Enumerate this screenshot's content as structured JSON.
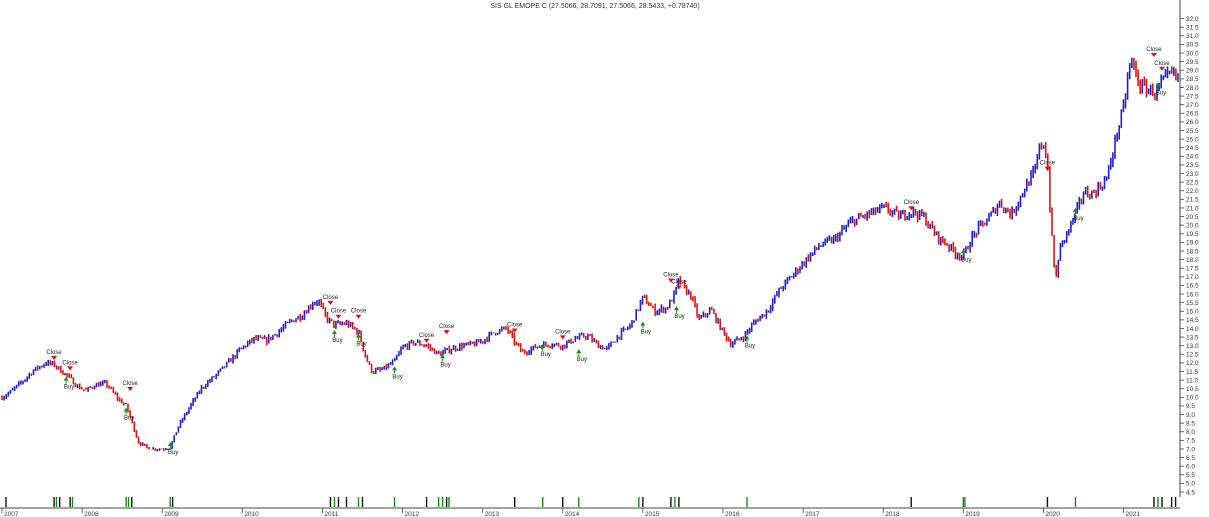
{
  "window": {
    "title": "SIS GL EMOPE C (27.5066, 28.7091, 27.5066, 28.5433, +0.78740)"
  },
  "colors": {
    "up_bar": "#1f1fd0",
    "down_bar": "#e01010",
    "close_marker": "#e01010",
    "buy_marker": "#1a8a1a",
    "axis": "#444444",
    "volume_bar": "#111111",
    "volume_bar_buy": "#1a8a1a"
  },
  "chart_data": {
    "type": "line",
    "title": "SIS GL EMOPE C (27.5066, 28.7091, 27.5066, 28.5433, +0.78740)",
    "xlabel": "",
    "ylabel": "",
    "x_range": [
      2007.0,
      2021.68
    ],
    "ylim": [
      4.5,
      32.5
    ],
    "y_ticks": [
      4.5,
      5.0,
      5.5,
      6.0,
      6.5,
      7.0,
      7.5,
      8.0,
      8.5,
      9.0,
      9.5,
      10.0,
      10.5,
      11.0,
      11.5,
      12.0,
      12.5,
      13.0,
      13.5,
      14.0,
      14.5,
      15.0,
      15.5,
      16.0,
      16.5,
      17.0,
      17.5,
      18.0,
      18.5,
      19.0,
      19.5,
      20.0,
      20.5,
      21.0,
      21.5,
      22.0,
      22.5,
      23.0,
      23.5,
      24.0,
      24.5,
      25.0,
      25.5,
      26.0,
      26.5,
      27.0,
      27.5,
      28.0,
      28.5,
      29.0,
      29.5,
      30.0,
      30.5,
      31.0,
      31.5,
      32.0
    ],
    "y_tick_labels": [
      "4.5",
      "5.0",
      "5.5",
      "6.0",
      "6.5",
      "7.0",
      "7.5",
      "8.0",
      "8.5",
      "9.0",
      "9.5",
      "10.0",
      "10.5",
      "11.0",
      "11.5",
      "12.0",
      "12.5",
      "13.0",
      "13.5",
      "14.0",
      "14.5",
      "15.0",
      "15.5",
      "16.0",
      "16.5",
      "17.0",
      "17.5",
      "18.0",
      "18.5",
      "19.0",
      "19.5",
      "20.0",
      "20.5",
      "21.0",
      "21.5",
      "22.0",
      "22.5",
      "23.0",
      "23.5",
      "24.0",
      "24.5",
      "25.0",
      "25.5",
      "26.0",
      "26.5",
      "27.0",
      "27.5",
      "28.0",
      "28.5",
      "29.0",
      "29.5",
      "30.0",
      "30.5",
      "31.0",
      "31.5",
      "32.0"
    ],
    "x_ticks": [
      2007,
      2008,
      2009,
      2010,
      2011,
      2012,
      2013,
      2014,
      2015,
      2016,
      2017,
      2018,
      2019,
      2020,
      2021
    ],
    "x_tick_labels": [
      "2007",
      "2008",
      "2009",
      "2010",
      "2011",
      "2012",
      "2013",
      "2014",
      "2015",
      "2016",
      "2017",
      "2018",
      "2019",
      "2020",
      "2021"
    ],
    "series": [
      {
        "x": [
          2007.0,
          2007.1,
          2007.25,
          2007.4,
          2007.55,
          2007.65,
          2007.75,
          2007.85,
          2007.95,
          2008.05,
          2008.15,
          2008.3,
          2008.45,
          2008.55,
          2008.62,
          2008.7,
          2008.8,
          2008.9,
          2009.0,
          2009.1,
          2009.2,
          2009.35,
          2009.5,
          2009.65,
          2009.8,
          2009.9,
          2010.0,
          2010.15,
          2010.3,
          2010.45,
          2010.6,
          2010.75,
          2010.88,
          2010.95,
          2011.05,
          2011.15,
          2011.3,
          2011.45,
          2011.55,
          2011.62,
          2011.75,
          2011.9,
          2012.0,
          2012.15,
          2012.3,
          2012.45,
          2012.6,
          2012.75,
          2012.9,
          2013.0,
          2013.15,
          2013.3,
          2013.4,
          2013.5,
          2013.6,
          2013.7,
          2013.85,
          2014.0,
          2014.15,
          2014.3,
          2014.45,
          2014.55,
          2014.7,
          2014.85,
          2015.0,
          2015.15,
          2015.3,
          2015.4,
          2015.45,
          2015.5,
          2015.6,
          2015.7,
          2015.85,
          2016.0,
          2016.1,
          2016.25,
          2016.4,
          2016.55,
          2016.7,
          2016.85,
          2017.0,
          2017.2,
          2017.4,
          2017.6,
          2017.8,
          2018.0,
          2018.1,
          2018.2,
          2018.35,
          2018.5,
          2018.6,
          2018.7,
          2018.8,
          2018.9,
          2019.0,
          2019.1,
          2019.2,
          2019.3,
          2019.45,
          2019.6,
          2019.75,
          2019.9,
          2019.95,
          2020.0,
          2020.05,
          2020.1,
          2020.15,
          2020.2,
          2020.3,
          2020.4,
          2020.5,
          2020.6,
          2020.7,
          2020.8,
          2020.9,
          2021.0,
          2021.05,
          2021.1,
          2021.2,
          2021.3,
          2021.4,
          2021.5,
          2021.6,
          2021.68
        ],
        "values": [
          10.0,
          10.3,
          10.9,
          11.6,
          12.0,
          11.9,
          11.5,
          11.1,
          10.6,
          10.4,
          10.7,
          10.8,
          9.9,
          9.5,
          8.6,
          7.4,
          7.1,
          7.0,
          7.0,
          7.1,
          8.3,
          9.5,
          10.6,
          11.2,
          11.9,
          12.4,
          12.9,
          13.4,
          13.3,
          13.8,
          14.4,
          14.8,
          15.5,
          15.6,
          14.6,
          14.2,
          14.3,
          13.8,
          12.2,
          11.5,
          11.6,
          12.1,
          12.9,
          13.2,
          13.0,
          12.5,
          12.8,
          13.0,
          13.1,
          13.3,
          13.8,
          14.0,
          13.2,
          12.6,
          12.8,
          13.0,
          13.1,
          13.0,
          13.4,
          13.6,
          13.0,
          12.8,
          13.6,
          14.2,
          15.8,
          15.0,
          15.2,
          16.0,
          16.9,
          16.4,
          15.9,
          14.5,
          15.1,
          13.8,
          13.1,
          13.5,
          14.4,
          15.0,
          16.2,
          17.0,
          17.8,
          18.8,
          19.2,
          20.2,
          20.6,
          21.0,
          20.8,
          20.5,
          20.8,
          20.5,
          19.8,
          19.2,
          18.9,
          18.4,
          18.2,
          19.2,
          19.9,
          20.3,
          21.3,
          20.6,
          22.0,
          23.2,
          24.5,
          24.8,
          23.6,
          19.6,
          16.6,
          18.6,
          19.6,
          20.6,
          21.9,
          21.8,
          22.2,
          22.8,
          25.0,
          26.8,
          28.5,
          29.6,
          28.1,
          27.9,
          27.7,
          28.4,
          28.8,
          28.54
        ]
      }
    ],
    "annotations": [
      {
        "text": "Close",
        "x": 2007.65,
        "y": 12.4,
        "kind": "close"
      },
      {
        "text": "Close",
        "x": 2007.85,
        "y": 11.8,
        "kind": "close"
      },
      {
        "text": "Buy",
        "x": 2007.8,
        "y": 11.2,
        "kind": "buy"
      },
      {
        "text": "Close",
        "x": 2008.6,
        "y": 10.6,
        "kind": "close"
      },
      {
        "text": "Buy",
        "x": 2008.55,
        "y": 9.4,
        "kind": "buy"
      },
      {
        "text": "Buy",
        "x": 2009.1,
        "y": 7.4,
        "kind": "buy"
      },
      {
        "text": "Close",
        "x": 2011.1,
        "y": 15.6,
        "kind": "close"
      },
      {
        "text": "Close",
        "x": 2011.2,
        "y": 14.8,
        "kind": "close"
      },
      {
        "text": "Buy",
        "x": 2011.15,
        "y": 13.9,
        "kind": "buy"
      },
      {
        "text": "Close",
        "x": 2011.45,
        "y": 14.8,
        "kind": "close"
      },
      {
        "text": "Buy",
        "x": 2011.45,
        "y": 13.7,
        "kind": "buy"
      },
      {
        "text": "Buy",
        "x": 2011.9,
        "y": 11.8,
        "kind": "buy"
      },
      {
        "text": "Close",
        "x": 2012.3,
        "y": 13.4,
        "kind": "close"
      },
      {
        "text": "Close",
        "x": 2012.55,
        "y": 13.9,
        "kind": "close"
      },
      {
        "text": "Buy",
        "x": 2012.5,
        "y": 12.5,
        "kind": "buy"
      },
      {
        "text": "Close",
        "x": 2013.4,
        "y": 14.0,
        "kind": "close"
      },
      {
        "text": "Buy",
        "x": 2013.75,
        "y": 13.1,
        "kind": "buy"
      },
      {
        "text": "Close",
        "x": 2014.0,
        "y": 13.6,
        "kind": "close"
      },
      {
        "text": "Buy",
        "x": 2014.2,
        "y": 12.8,
        "kind": "buy"
      },
      {
        "text": "Buy",
        "x": 2015.0,
        "y": 14.4,
        "kind": "buy"
      },
      {
        "text": "Close",
        "x": 2015.35,
        "y": 16.9,
        "kind": "close"
      },
      {
        "text": "Close",
        "x": 2015.45,
        "y": 16.5,
        "kind": "close"
      },
      {
        "text": "Buy",
        "x": 2015.42,
        "y": 15.3,
        "kind": "buy"
      },
      {
        "text": "Buy",
        "x": 2016.3,
        "y": 13.6,
        "kind": "buy"
      },
      {
        "text": "Close",
        "x": 2018.35,
        "y": 21.1,
        "kind": "close"
      },
      {
        "text": "Buy",
        "x": 2019.0,
        "y": 18.6,
        "kind": "buy"
      },
      {
        "text": "Close",
        "x": 2020.05,
        "y": 23.4,
        "kind": "close"
      },
      {
        "text": "Buy",
        "x": 2020.4,
        "y": 21.0,
        "kind": "buy"
      },
      {
        "text": "Close",
        "x": 2021.38,
        "y": 30.0,
        "kind": "close"
      },
      {
        "text": "Close",
        "x": 2021.48,
        "y": 29.2,
        "kind": "close"
      },
      {
        "text": "Buy",
        "x": 2021.43,
        "y": 28.3,
        "kind": "buy"
      }
    ],
    "signal_ticks": [
      {
        "x": 2007.05,
        "kind": "close"
      },
      {
        "x": 2007.65,
        "kind": "close"
      },
      {
        "x": 2007.68,
        "kind": "buy"
      },
      {
        "x": 2007.72,
        "kind": "close"
      },
      {
        "x": 2007.85,
        "kind": "close"
      },
      {
        "x": 2007.88,
        "kind": "buy"
      },
      {
        "x": 2008.55,
        "kind": "buy"
      },
      {
        "x": 2008.58,
        "kind": "buy"
      },
      {
        "x": 2008.62,
        "kind": "close"
      },
      {
        "x": 2009.1,
        "kind": "buy"
      },
      {
        "x": 2009.13,
        "kind": "close"
      },
      {
        "x": 2011.1,
        "kind": "close"
      },
      {
        "x": 2011.15,
        "kind": "buy"
      },
      {
        "x": 2011.2,
        "kind": "close"
      },
      {
        "x": 2011.3,
        "kind": "close"
      },
      {
        "x": 2011.45,
        "kind": "buy"
      },
      {
        "x": 2011.5,
        "kind": "close"
      },
      {
        "x": 2011.9,
        "kind": "buy"
      },
      {
        "x": 2012.3,
        "kind": "close"
      },
      {
        "x": 2012.45,
        "kind": "buy"
      },
      {
        "x": 2012.5,
        "kind": "buy"
      },
      {
        "x": 2012.55,
        "kind": "close"
      },
      {
        "x": 2012.58,
        "kind": "buy"
      },
      {
        "x": 2013.4,
        "kind": "close"
      },
      {
        "x": 2013.75,
        "kind": "buy"
      },
      {
        "x": 2014.0,
        "kind": "close"
      },
      {
        "x": 2014.2,
        "kind": "buy"
      },
      {
        "x": 2014.95,
        "kind": "buy"
      },
      {
        "x": 2015.0,
        "kind": "close"
      },
      {
        "x": 2015.35,
        "kind": "close"
      },
      {
        "x": 2015.4,
        "kind": "buy"
      },
      {
        "x": 2015.45,
        "kind": "close"
      },
      {
        "x": 2016.3,
        "kind": "buy"
      },
      {
        "x": 2018.35,
        "kind": "close"
      },
      {
        "x": 2019.0,
        "kind": "buy"
      },
      {
        "x": 2019.02,
        "kind": "buy"
      },
      {
        "x": 2020.05,
        "kind": "close"
      },
      {
        "x": 2020.4,
        "kind": "buy"
      },
      {
        "x": 2021.38,
        "kind": "close"
      },
      {
        "x": 2021.43,
        "kind": "buy"
      },
      {
        "x": 2021.48,
        "kind": "close"
      },
      {
        "x": 2021.6,
        "kind": "close"
      },
      {
        "x": 2021.65,
        "kind": "close"
      }
    ],
    "grid": false,
    "legend": "none"
  }
}
